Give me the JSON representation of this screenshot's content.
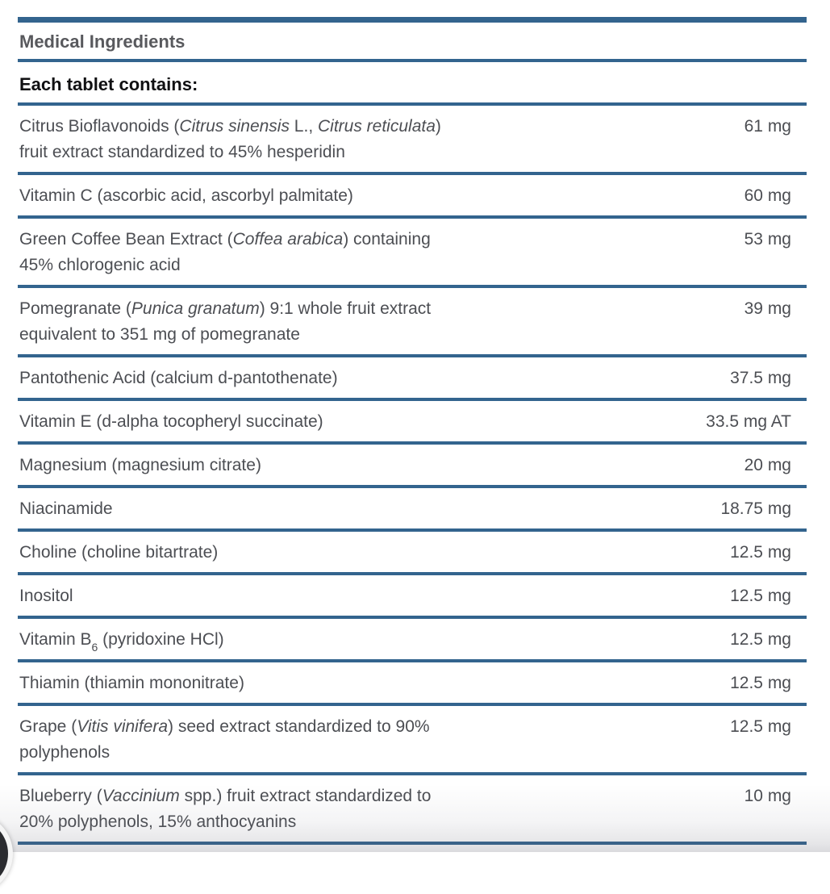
{
  "header": {
    "section_title": "Medical Ingredients",
    "subtitle": "Each tablet contains:"
  },
  "colors": {
    "rule_blue": "#33648e",
    "section_title_gray": "#58595d",
    "subtitle_black": "#101012",
    "body_text_gray": "#4c4e53",
    "widget_dark": "#2b2c30"
  },
  "ingredients": [
    {
      "name_parts": [
        {
          "t": "Citrus Bioflavonoids ("
        },
        {
          "t": "Citrus sinensis",
          "i": true
        },
        {
          "t": " L., "
        },
        {
          "t": "Citrus reticulata",
          "i": true
        },
        {
          "t": ")"
        },
        {
          "br": true
        },
        {
          "t": "fruit extract standardized to 45% hesperidin"
        }
      ],
      "amount": "61 mg"
    },
    {
      "name_parts": [
        {
          "t": "Vitamin C (ascorbic acid, ascorbyl palmitate)"
        }
      ],
      "amount": "60 mg"
    },
    {
      "name_parts": [
        {
          "t": "Green Coffee Bean Extract ("
        },
        {
          "t": "Coffea arabica",
          "i": true
        },
        {
          "t": ") containing"
        },
        {
          "br": true
        },
        {
          "t": "45% chlorogenic acid"
        }
      ],
      "amount": "53 mg"
    },
    {
      "name_parts": [
        {
          "t": "Pomegranate ("
        },
        {
          "t": "Punica granatum",
          "i": true
        },
        {
          "t": ") 9:1 whole fruit extract"
        },
        {
          "br": true
        },
        {
          "t": "equivalent to 351 mg of pomegranate"
        }
      ],
      "amount": "39 mg"
    },
    {
      "name_parts": [
        {
          "t": "Pantothenic Acid (calcium d-pantothenate)"
        }
      ],
      "amount": "37.5 mg"
    },
    {
      "name_parts": [
        {
          "t": "Vitamin E (d-alpha tocopheryl succinate)"
        }
      ],
      "amount": "33.5 mg AT"
    },
    {
      "name_parts": [
        {
          "t": "Magnesium (magnesium citrate)"
        }
      ],
      "amount": "20 mg"
    },
    {
      "name_parts": [
        {
          "t": "Niacinamide"
        }
      ],
      "amount": "18.75 mg"
    },
    {
      "name_parts": [
        {
          "t": "Choline (choline bitartrate)"
        }
      ],
      "amount": "12.5 mg"
    },
    {
      "name_parts": [
        {
          "t": "Inositol"
        }
      ],
      "amount": "12.5 mg"
    },
    {
      "name_parts": [
        {
          "t": "Vitamin B"
        },
        {
          "t": "6",
          "sub": true
        },
        {
          "t": " (pyridoxine HCl)"
        }
      ],
      "amount": "12.5 mg"
    },
    {
      "name_parts": [
        {
          "t": "Thiamin (thiamin mononitrate)"
        }
      ],
      "amount": "12.5 mg"
    },
    {
      "name_parts": [
        {
          "t": "Grape ("
        },
        {
          "t": "Vitis vinifera",
          "i": true
        },
        {
          "t": ") seed extract standardized to 90%"
        },
        {
          "br": true
        },
        {
          "t": "polyphenols"
        }
      ],
      "amount": "12.5 mg"
    },
    {
      "name_parts": [
        {
          "t": "Blueberry ("
        },
        {
          "t": "Vaccinium",
          "i": true
        },
        {
          "t": " spp.) fruit extract standardized to"
        },
        {
          "br": true
        },
        {
          "t": "20% polyphenols, 15% anthocyanins"
        }
      ],
      "amount": "10 mg"
    }
  ]
}
